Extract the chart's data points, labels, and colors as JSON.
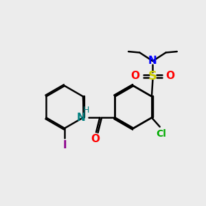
{
  "bg_color": "#ececec",
  "bond_color": "black",
  "bond_width": 1.8,
  "atom_colors": {
    "C": "black",
    "N_blue": "#0000ff",
    "N_teal": "#008080",
    "O": "#ff0000",
    "S": "#cccc00",
    "Cl": "#00aa00",
    "I": "#8B008B",
    "H": "#008080"
  },
  "font_size": 10,
  "figsize": [
    3.0,
    3.0
  ],
  "dpi": 100
}
